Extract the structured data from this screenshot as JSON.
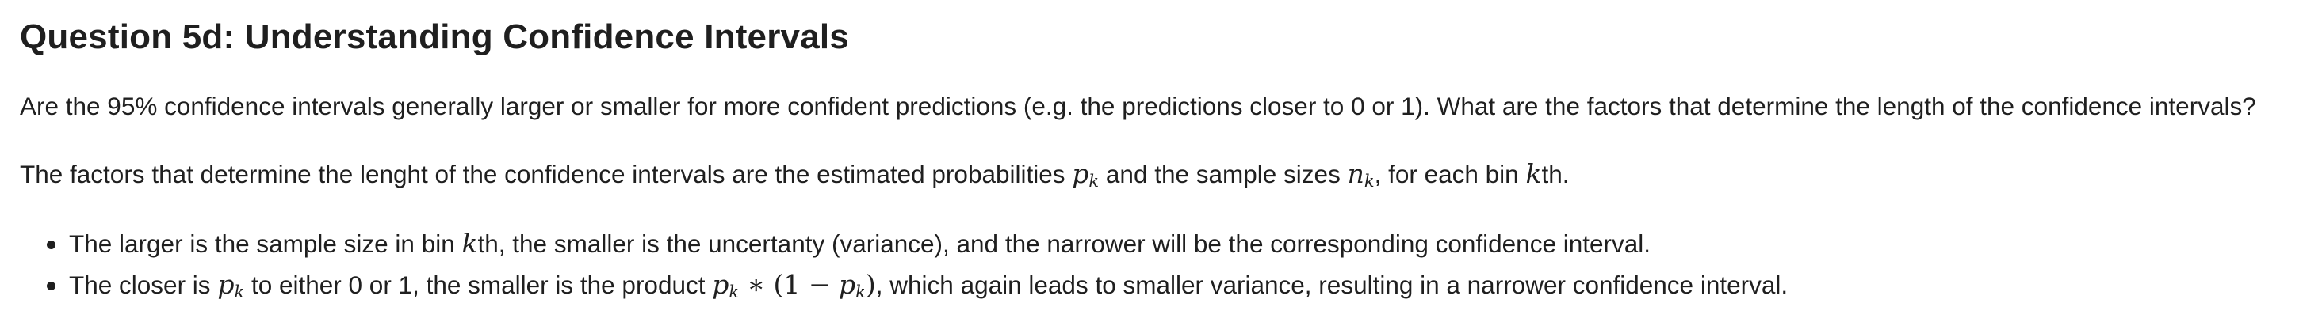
{
  "title": "Question 5d: Understanding Confidence Intervals",
  "question": "Are the 95% confidence intervals generally larger or smaller for more confident predictions (e.g. the predictions closer to 0 or 1). What are the factors that determine the length of the confidence intervals?",
  "answer": {
    "intro_a": "The factors that determine the lenght of the confidence intervals are the estimated probabilities",
    "intro_b": "and the sample sizes",
    "intro_c": ", for each bin",
    "intro_d": "th."
  },
  "bullets": [
    {
      "a": "The larger is the sample size in bin",
      "b": "th, the smaller is the uncertanty (variance), and the narrower will be the corresponding confidence interval."
    },
    {
      "a": "The closer is",
      "b": "to either 0 or 1, the smaller is the product",
      "c": ", which again leads to smaller variance, resulting in a narrower confidence interval."
    }
  ],
  "math": {
    "p": "p",
    "n": "n",
    "k": "k",
    "times": " ∗ ",
    "open": "(1 − ",
    "close": ")"
  }
}
